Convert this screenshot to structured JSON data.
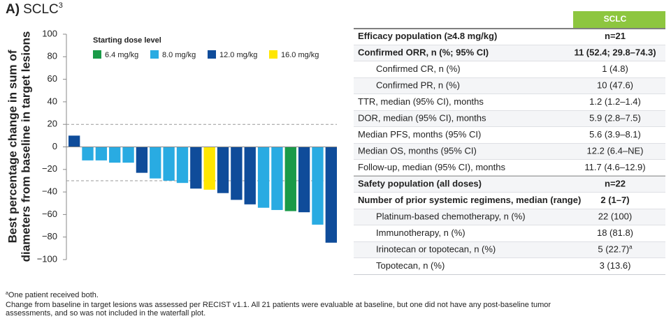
{
  "chart_data": {
    "type": "waterfall",
    "panel": "A)",
    "title": "SCLC",
    "title_superscript": "3",
    "y_label": [
      "Best percentage change in sum of",
      "diameters from baseline in target lesions"
    ],
    "values": [
      10,
      -12,
      -12,
      -14,
      -14,
      -23,
      -28,
      -30,
      -32,
      -37,
      -38,
      -41,
      -47,
      -51,
      -54,
      -56,
      -57,
      -58,
      -69,
      -85
    ],
    "bar_colors": [
      "#0f4c9a",
      "#29abe2",
      "#29abe2",
      "#29abe2",
      "#29abe2",
      "#0f4c9a",
      "#29abe2",
      "#29abe2",
      "#29abe2",
      "#0f4c9a",
      "#ffe600",
      "#0f4c9a",
      "#0f4c9a",
      "#0f4c9a",
      "#29abe2",
      "#29abe2",
      "#1a9a48",
      "#0f4c9a",
      "#29abe2",
      "#0f4c9a"
    ],
    "legend_title": "Starting dose level",
    "legend": [
      {
        "name": "6.4 mg/kg",
        "color": "#1a9a48"
      },
      {
        "name": "8.0 mg/kg",
        "color": "#29abe2"
      },
      {
        "name": "12.0 mg/kg",
        "color": "#0f4c9a"
      },
      {
        "name": "16.0 mg/kg",
        "color": "#ffe600"
      }
    ],
    "ylim": [
      -100,
      100
    ],
    "yticks": [
      {
        "value": -100,
        "label": "−100"
      },
      {
        "value": -80,
        "label": "−80"
      },
      {
        "value": -60,
        "label": "−60"
      },
      {
        "value": -40,
        "label": "−40"
      },
      {
        "value": -20,
        "label": "−20"
      },
      0,
      20,
      40,
      60,
      80,
      100
    ],
    "reference_lines": [
      20,
      -30
    ]
  },
  "table": {
    "header": "SCLC",
    "header_color": "#8dc63f",
    "rows": [
      {
        "label": "Efficacy population (≥4.8 mg/kg)",
        "value": "n=21",
        "bold": true
      },
      {
        "label": "Confirmed ORR, n (%; 95% CI)",
        "value": "11 (52.4; 29.8–74.3)",
        "bold": true
      },
      {
        "label": "Confirmed CR, n (%)",
        "value": "1 (4.8)",
        "indent": true
      },
      {
        "label": "Confirmed PR, n (%)",
        "value": "10 (47.6)",
        "indent": true
      },
      {
        "label": "TTR, median (95% CI), months",
        "value": "1.2 (1.2–1.4)"
      },
      {
        "label": "DOR, median (95% CI), months",
        "value": "5.9 (2.8–7.5)"
      },
      {
        "label": "Median PFS, months (95% CI)",
        "value": "5.6 (3.9–8.1)"
      },
      {
        "label": "Median OS, months (95% CI)",
        "value": "12.2 (6.4–NE)"
      },
      {
        "label": "Follow-up, median (95% CI), months",
        "value": "11.7 (4.6–12.9)"
      },
      {
        "label": "Safety population (all doses)",
        "value": "n=22",
        "bold": true
      },
      {
        "label": "Number of prior systemic regimens, median (range)",
        "value": "2 (1–7)",
        "bold": true
      },
      {
        "label": "Platinum-based chemotherapy, n (%)",
        "value": "22 (100)",
        "indent": true
      },
      {
        "label": "Immunotherapy, n (%)",
        "value": "18 (81.8)",
        "indent": true
      },
      {
        "label": "Irinotecan or topotecan, n (%)",
        "value": "5 (22.7)",
        "value_sup": "a",
        "indent": true
      },
      {
        "label": "Topotecan, n (%)",
        "value": "3 (13.6)",
        "indent": true
      }
    ]
  },
  "footnotes": {
    "sup": "a",
    "note": "One patient received both.",
    "lines": [
      "Change from baseline in target lesions was assessed per RECIST v1.1. All 21 patients were evaluable at baseline, but one did not have any post-baseline tumor",
      "assessments, and so was not included in the waterfall plot."
    ]
  }
}
